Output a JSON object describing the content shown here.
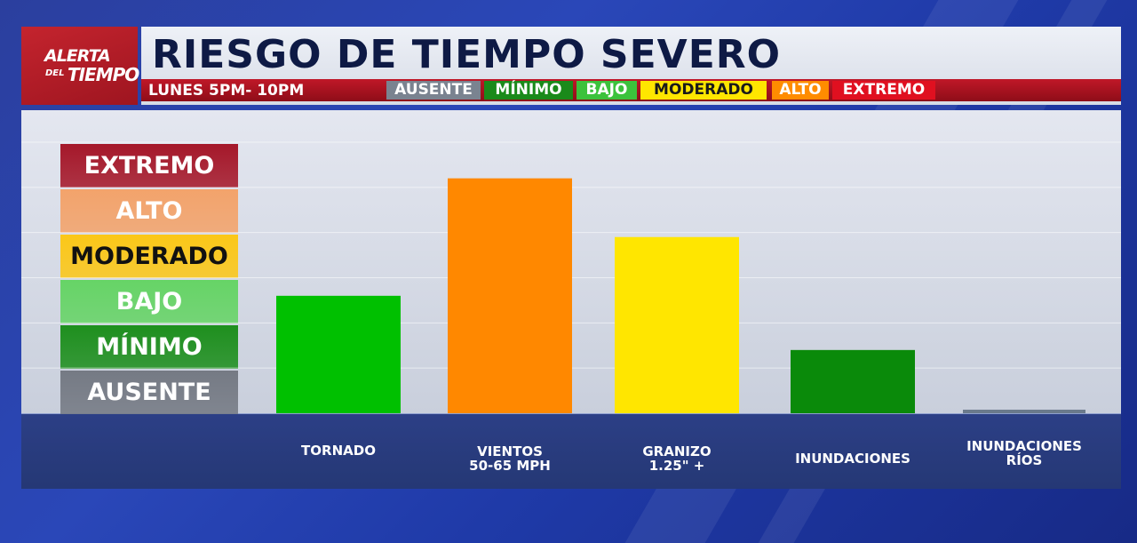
{
  "logo": {
    "line1": "ALERTA",
    "line2": "DEL",
    "line3": "TIEMPO"
  },
  "header": {
    "title": "RIESGO DE TIEMPO SEVERO",
    "time_label": "LUNES 5PM- 10PM",
    "legend_tags": [
      {
        "label": "AUSENTE",
        "bg": "#7a8390",
        "fg": "#ffffff"
      },
      {
        "label": "MÍNIMO",
        "bg": "#1a8a1a",
        "fg": "#ffffff"
      },
      {
        "label": "BAJO",
        "bg": "#3cc23c",
        "fg": "#ffffff"
      },
      {
        "label": "MODERADO",
        "bg": "#ffe600",
        "fg": "#1a1a1a"
      },
      {
        "label": "ALTO",
        "bg": "#ff8c00",
        "fg": "#ffffff"
      },
      {
        "label": "EXTREMO",
        "bg": "#e01020",
        "fg": "#ffffff"
      }
    ]
  },
  "levels": [
    {
      "label": "EXTREMO",
      "bg": "#a5182a",
      "fg": "#ffffff"
    },
    {
      "label": "ALTO",
      "bg": "#f3a36b",
      "fg": "#ffffff"
    },
    {
      "label": "MODERADO",
      "bg": "#fbc718",
      "fg": "#111111"
    },
    {
      "label": "BAJO",
      "bg": "#66d466",
      "fg": "#ffffff"
    },
    {
      "label": "MÍNIMO",
      "bg": "#1e8f1e",
      "fg": "#ffffff"
    },
    {
      "label": "AUSENTE",
      "bg": "#757a84",
      "fg": "#ffffff"
    }
  ],
  "chart_data": {
    "type": "bar",
    "categories": [
      [
        "TORNADO"
      ],
      [
        "VIENTOS",
        "50-65 MPH"
      ],
      [
        "GRANIZO",
        "1.25\" +"
      ],
      [
        "INUNDACIONES"
      ],
      [
        "INUNDACIONES",
        "RÍOS"
      ]
    ],
    "values": [
      2.6,
      5.2,
      3.9,
      1.4,
      0.05
    ],
    "bar_colors": [
      "#00c000",
      "#ff8800",
      "#ffe600",
      "#0a8a0a",
      "#6b7a8c"
    ],
    "ylim": [
      0,
      6
    ],
    "ytick_labels": [
      "AUSENTE",
      "MÍNIMO",
      "BAJO",
      "MODERADO",
      "ALTO",
      "EXTREMO"
    ],
    "grid": true
  }
}
